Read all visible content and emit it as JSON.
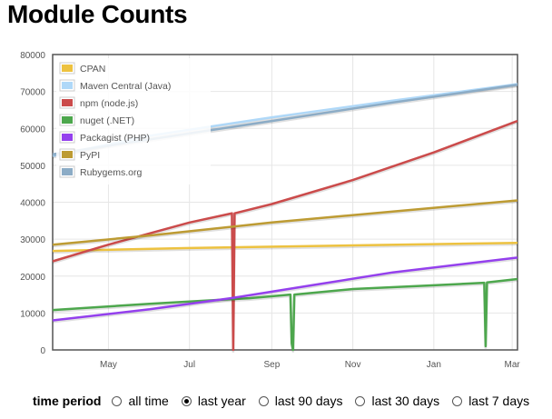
{
  "title": "Module Counts",
  "controls": {
    "label": "time period",
    "options": [
      "all time",
      "last year",
      "last 90 days",
      "last 30 days",
      "last 7 days"
    ],
    "selected": "last year"
  },
  "chart_data": {
    "type": "line",
    "x_type": "date",
    "xlim": [
      "2013-03-20",
      "2014-03-05"
    ],
    "ylim": [
      0,
      80000
    ],
    "x_ticks": [
      {
        "label": "May",
        "date": "2013-05-01"
      },
      {
        "label": "Jul",
        "date": "2013-07-01"
      },
      {
        "label": "Sep",
        "date": "2013-09-01"
      },
      {
        "label": "Nov",
        "date": "2013-11-01"
      },
      {
        "label": "Jan",
        "date": "2014-01-01"
      },
      {
        "label": "Mar",
        "date": "2014-03-01"
      }
    ],
    "y_ticks": [
      0,
      10000,
      20000,
      30000,
      40000,
      50000,
      60000,
      70000,
      80000
    ],
    "grid": true,
    "legend_position": "top-left",
    "series": [
      {
        "name": "CPAN",
        "color": "#edc240",
        "points": [
          [
            "2013-03-20",
            26800
          ],
          [
            "2013-07-01",
            27600
          ],
          [
            "2013-11-01",
            28300
          ],
          [
            "2014-03-05",
            29000
          ]
        ]
      },
      {
        "name": "Maven Central (Java)",
        "color": "#afd8f8",
        "points": [
          [
            "2013-03-20",
            52500
          ],
          [
            "2013-06-01",
            58000
          ],
          [
            "2013-09-01",
            63000
          ],
          [
            "2013-12-01",
            67500
          ],
          [
            "2014-03-05",
            72000
          ]
        ]
      },
      {
        "name": "npm (node.js)",
        "color": "#cb4b4b",
        "points": [
          [
            "2013-03-20",
            24000
          ],
          [
            "2013-05-01",
            28500
          ],
          [
            "2013-07-01",
            34500
          ],
          [
            "2013-08-02",
            37000
          ],
          [
            "2013-08-03",
            0
          ],
          [
            "2013-08-04",
            37000
          ],
          [
            "2013-09-01",
            39500
          ],
          [
            "2013-11-01",
            46000
          ],
          [
            "2014-01-01",
            53500
          ],
          [
            "2014-03-05",
            62000
          ]
        ]
      },
      {
        "name": "nuget (.NET)",
        "color": "#4da74d",
        "points": [
          [
            "2013-03-20",
            10800
          ],
          [
            "2013-06-01",
            12500
          ],
          [
            "2013-08-15",
            14000
          ],
          [
            "2013-09-15",
            15000
          ],
          [
            "2013-09-16",
            1800
          ],
          [
            "2013-09-17",
            0
          ],
          [
            "2013-09-18",
            15000
          ],
          [
            "2013-11-01",
            16500
          ],
          [
            "2014-01-01",
            17500
          ],
          [
            "2014-02-08",
            18200
          ],
          [
            "2014-02-09",
            1000
          ],
          [
            "2014-02-10",
            18300
          ],
          [
            "2014-03-05",
            19200
          ]
        ]
      },
      {
        "name": "Packagist (PHP)",
        "color": "#9440ed",
        "points": [
          [
            "2013-03-20",
            8000
          ],
          [
            "2013-06-01",
            11000
          ],
          [
            "2013-08-01",
            14000
          ],
          [
            "2013-10-01",
            17500
          ],
          [
            "2013-12-01",
            21000
          ],
          [
            "2014-03-05",
            25000
          ]
        ]
      },
      {
        "name": "PyPI",
        "color": "#bd9b33",
        "points": [
          [
            "2013-03-20",
            28500
          ],
          [
            "2013-06-01",
            31000
          ],
          [
            "2013-09-01",
            34500
          ],
          [
            "2013-12-01",
            37500
          ],
          [
            "2014-03-05",
            40500
          ]
        ]
      },
      {
        "name": "Rubygems.org",
        "color": "#8cacc6",
        "points": [
          [
            "2013-03-20",
            53000
          ],
          [
            "2013-06-01",
            57000
          ],
          [
            "2013-09-01",
            62000
          ],
          [
            "2013-12-01",
            67000
          ],
          [
            "2014-03-05",
            71800
          ]
        ]
      }
    ]
  }
}
